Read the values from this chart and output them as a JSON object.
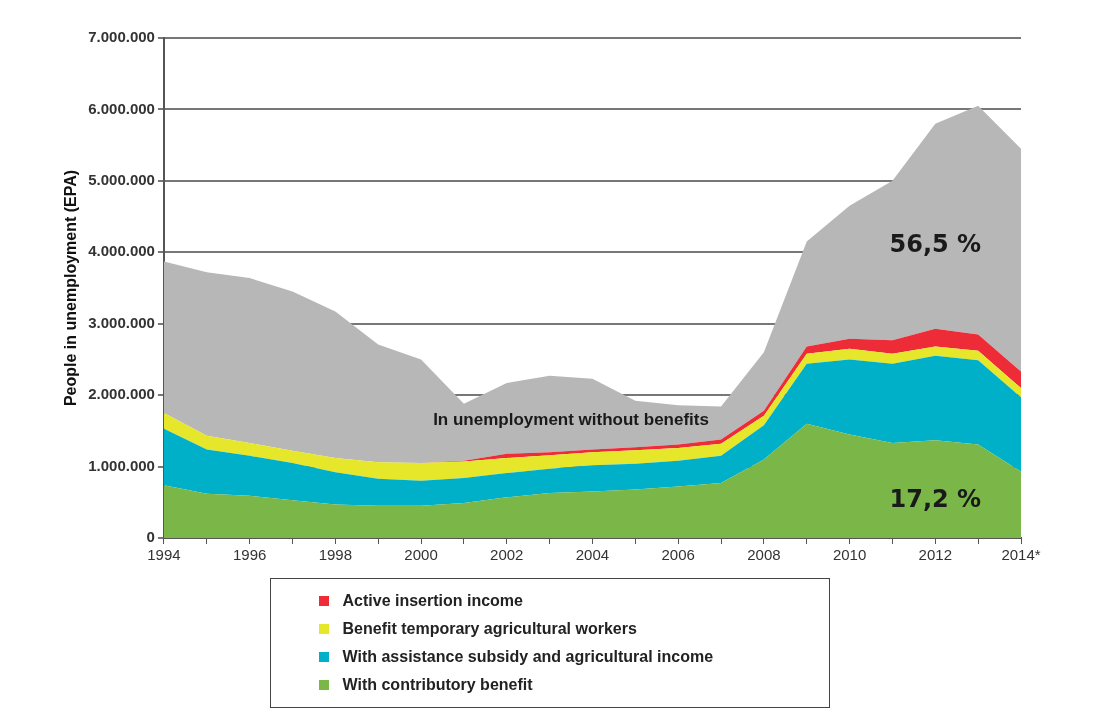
{
  "chart_data": {
    "type": "area",
    "stacked": true,
    "ylabel": "People in unemployment (EPA)",
    "x": [
      1994,
      1995,
      1996,
      1997,
      1998,
      1999,
      2000,
      2001,
      2002,
      2003,
      2004,
      2005,
      2006,
      2007,
      2008,
      2009,
      2010,
      2011,
      2012,
      2013,
      2014
    ],
    "series": [
      {
        "name": "With contributory benefit",
        "color": "#7ab648",
        "values": [
          740000,
          620000,
          590000,
          530000,
          470000,
          450000,
          450000,
          490000,
          570000,
          630000,
          650000,
          680000,
          720000,
          770000,
          1100000,
          1600000,
          1450000,
          1330000,
          1370000,
          1310000,
          930000
        ]
      },
      {
        "name": "With assistance subsidy and agricultural income",
        "color": "#00b0c8",
        "values": [
          790000,
          620000,
          560000,
          520000,
          450000,
          380000,
          350000,
          350000,
          340000,
          340000,
          370000,
          360000,
          360000,
          380000,
          480000,
          840000,
          1050000,
          1110000,
          1180000,
          1180000,
          1040000
        ]
      },
      {
        "name": "Benefit temporary agricultural workers",
        "color": "#e6e62a",
        "values": [
          220000,
          190000,
          180000,
          170000,
          200000,
          230000,
          250000,
          230000,
          210000,
          190000,
          180000,
          190000,
          180000,
          170000,
          130000,
          140000,
          150000,
          140000,
          130000,
          130000,
          130000
        ]
      },
      {
        "name": "Active insertion income",
        "color": "#ee2c38",
        "values": [
          0,
          0,
          0,
          0,
          0,
          0,
          0,
          10000,
          60000,
          40000,
          40000,
          40000,
          50000,
          60000,
          70000,
          100000,
          140000,
          190000,
          250000,
          230000,
          230000
        ]
      },
      {
        "color": "#b7b7b7",
        "values": [
          2120000,
          2290000,
          2310000,
          2230000,
          2050000,
          1650000,
          1450000,
          800000,
          990000,
          1070000,
          990000,
          650000,
          550000,
          460000,
          820000,
          1470000,
          1860000,
          2230000,
          2870000,
          3200000,
          3120000
        ]
      }
    ],
    "xlim": [
      1994,
      2014
    ],
    "xticks": [
      1994,
      {
        "value": 1995,
        "label": null
      },
      1996,
      {
        "value": 1997,
        "label": null
      },
      1998,
      {
        "value": 1999,
        "label": null
      },
      2000,
      {
        "value": 2001,
        "label": null
      },
      2002,
      {
        "value": 2003,
        "label": null
      },
      2004,
      {
        "value": 2005,
        "label": null
      },
      2006,
      {
        "value": 2007,
        "label": null
      },
      2008,
      {
        "value": 2009,
        "label": null
      },
      2010,
      {
        "value": 2011,
        "label": null
      },
      2012,
      {
        "value": 2013,
        "label": null
      },
      {
        "value": 2014,
        "label": "2014*"
      }
    ],
    "ylim": [
      0,
      7000000
    ],
    "yticks": [
      {
        "value": 0,
        "label": "0"
      },
      {
        "value": 1000000,
        "label": "1.000.000"
      },
      {
        "value": 2000000,
        "label": "2.000.000"
      },
      {
        "value": 3000000,
        "label": "3.000.000"
      },
      {
        "value": 4000000,
        "label": "4.000.000"
      },
      {
        "value": 5000000,
        "label": "5.000.000"
      },
      {
        "value": 6000000,
        "label": "6.000.000"
      },
      {
        "value": 7000000,
        "label": "7.000.000"
      }
    ],
    "grid": "y",
    "legend": "bottom",
    "annotations": [
      "In unemployment without benefits",
      "56,5 %",
      "17,2 %"
    ]
  }
}
